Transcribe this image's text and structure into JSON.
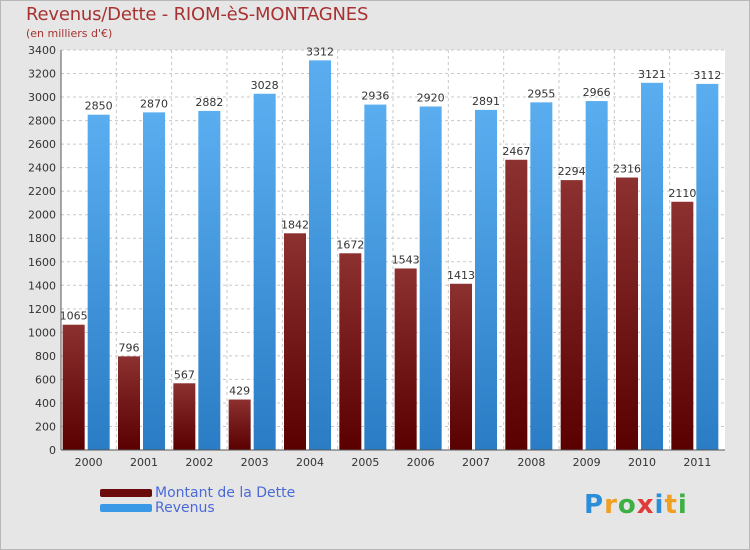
{
  "header": {
    "title": "Revenus/Dette - RIOM-èS-MONTAGNES",
    "subtitle": "(en milliers d'€)"
  },
  "legend": {
    "items": [
      {
        "label": "Montant de la Dette",
        "color": "#6b0a0a"
      },
      {
        "label": "Revenus",
        "color": "#3a99e6"
      }
    ]
  },
  "logo": {
    "letters": [
      {
        "char": "P",
        "color": "#2a8fd8"
      },
      {
        "char": "r",
        "color": "#f0a020"
      },
      {
        "char": "o",
        "color": "#3cb043"
      },
      {
        "char": "x",
        "color": "#e03a3a"
      },
      {
        "char": "i",
        "color": "#2a8fd8"
      },
      {
        "char": "t",
        "color": "#f0a020"
      },
      {
        "char": "i",
        "color": "#3cb043"
      }
    ]
  },
  "chart_data": {
    "type": "bar",
    "title": "Revenus/Dette - RIOM-èS-MONTAGNES",
    "subtitle": "(en milliers d'€)",
    "categories": [
      "2000",
      "2001",
      "2002",
      "2003",
      "2004",
      "2005",
      "2006",
      "2007",
      "2008",
      "2009",
      "2010",
      "2011"
    ],
    "series": [
      {
        "name": "Montant de la Dette",
        "color": "#6b0a0a",
        "color_light": "#8c3030",
        "values": [
          1065,
          796,
          567,
          429,
          1842,
          1672,
          1543,
          1413,
          2467,
          2294,
          2316,
          2110
        ],
        "labels": [
          "1065",
          "796",
          "567",
          "429",
          "1842",
          "1672",
          "1543",
          "1413",
          "2467",
          "2294",
          "2316",
          "2110"
        ]
      },
      {
        "name": "Revenus",
        "color": "#2a7fc8",
        "color_light": "#5aaef0",
        "values": [
          2850,
          2870,
          2882,
          3028,
          3312,
          2936,
          2920,
          2891,
          2955,
          2966,
          3121,
          3112
        ],
        "labels": [
          "2850",
          "2870",
          "2882",
          "3028",
          "3312",
          "2936",
          "2920",
          "2891",
          "2955",
          "2966",
          "3121",
          "3112"
        ]
      }
    ],
    "ylim": [
      0,
      3400
    ],
    "yticks": [
      0,
      200,
      400,
      600,
      800,
      1000,
      1200,
      1400,
      1600,
      1800,
      2000,
      2200,
      2400,
      2600,
      2800,
      3000,
      3200,
      3400
    ],
    "grid": true,
    "legend_position": "bottom-left"
  }
}
